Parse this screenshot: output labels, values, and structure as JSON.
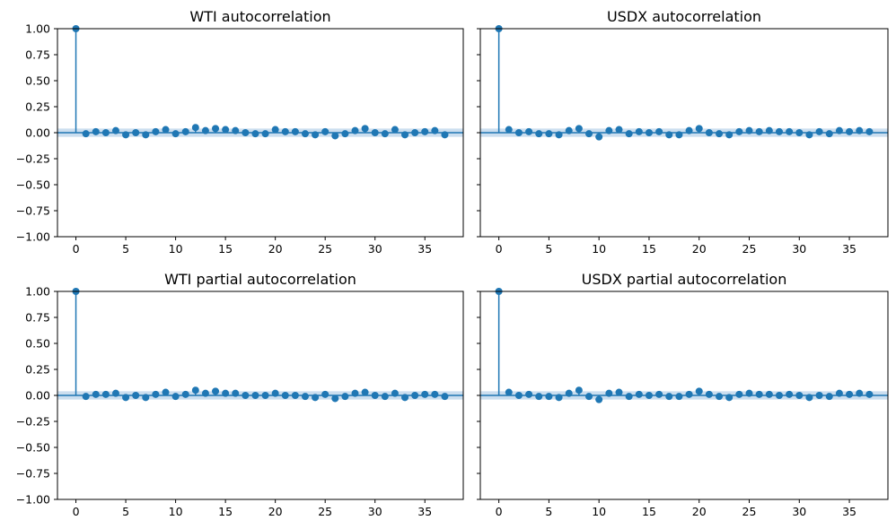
{
  "colors": {
    "series": "#1f77b4",
    "band": "#a9c8e4",
    "axes": "#000000"
  },
  "chart_data": [
    {
      "type": "stem",
      "title": "WTI autocorrelation",
      "x": [
        0,
        1,
        2,
        3,
        4,
        5,
        6,
        7,
        8,
        9,
        10,
        11,
        12,
        13,
        14,
        15,
        16,
        17,
        18,
        19,
        20,
        21,
        22,
        23,
        24,
        25,
        26,
        27,
        28,
        29,
        30,
        31,
        32,
        33,
        34,
        35,
        36,
        37
      ],
      "values": [
        1.0,
        -0.01,
        0.01,
        0.0,
        0.02,
        -0.02,
        0.0,
        -0.02,
        0.01,
        0.03,
        -0.01,
        0.01,
        0.05,
        0.02,
        0.04,
        0.03,
        0.02,
        0.0,
        -0.01,
        -0.01,
        0.03,
        0.01,
        0.01,
        -0.01,
        -0.02,
        0.01,
        -0.03,
        -0.01,
        0.02,
        0.04,
        0.0,
        -0.01,
        0.03,
        -0.02,
        0.0,
        0.01,
        0.02,
        -0.02
      ],
      "xticks": [
        "0",
        "5",
        "10",
        "15",
        "20",
        "25",
        "30",
        "35"
      ],
      "yticks": [
        "1.00",
        "0.75",
        "0.50",
        "0.25",
        "0.00",
        "−0.25",
        "−0.50",
        "−0.75",
        "−1.00"
      ],
      "ylim": [
        -1,
        1
      ],
      "show_yticklabels": true
    },
    {
      "type": "stem",
      "title": "USDX autocorrelation",
      "x": [
        0,
        1,
        2,
        3,
        4,
        5,
        6,
        7,
        8,
        9,
        10,
        11,
        12,
        13,
        14,
        15,
        16,
        17,
        18,
        19,
        20,
        21,
        22,
        23,
        24,
        25,
        26,
        27,
        28,
        29,
        30,
        31,
        32,
        33,
        34,
        35,
        36,
        37
      ],
      "values": [
        1.0,
        0.03,
        0.0,
        0.01,
        -0.01,
        -0.01,
        -0.02,
        0.02,
        0.04,
        -0.01,
        -0.04,
        0.02,
        0.03,
        -0.01,
        0.01,
        0.0,
        0.01,
        -0.02,
        -0.02,
        0.02,
        0.04,
        0.0,
        -0.01,
        -0.02,
        0.01,
        0.02,
        0.01,
        0.02,
        0.01,
        0.01,
        0.0,
        -0.02,
        0.01,
        -0.01,
        0.02,
        0.01,
        0.02,
        0.01
      ],
      "xticks": [
        "0",
        "5",
        "10",
        "15",
        "20",
        "25",
        "30",
        "35"
      ],
      "yticks": [
        "1.00",
        "0.75",
        "0.50",
        "0.25",
        "0.00",
        "−0.25",
        "−0.50",
        "−0.75",
        "−1.00"
      ],
      "ylim": [
        -1,
        1
      ],
      "show_yticklabels": false
    },
    {
      "type": "stem",
      "title": "WTI partial autocorrelation",
      "x": [
        0,
        1,
        2,
        3,
        4,
        5,
        6,
        7,
        8,
        9,
        10,
        11,
        12,
        13,
        14,
        15,
        16,
        17,
        18,
        19,
        20,
        21,
        22,
        23,
        24,
        25,
        26,
        27,
        28,
        29,
        30,
        31,
        32,
        33,
        34,
        35,
        36,
        37
      ],
      "values": [
        1.0,
        -0.01,
        0.01,
        0.01,
        0.02,
        -0.02,
        0.0,
        -0.02,
        0.01,
        0.03,
        -0.01,
        0.01,
        0.05,
        0.02,
        0.04,
        0.02,
        0.02,
        0.0,
        0.0,
        0.0,
        0.02,
        0.0,
        0.0,
        -0.01,
        -0.02,
        0.01,
        -0.03,
        -0.01,
        0.02,
        0.03,
        0.0,
        -0.01,
        0.02,
        -0.02,
        0.0,
        0.01,
        0.01,
        -0.01
      ],
      "xticks": [
        "0",
        "5",
        "10",
        "15",
        "20",
        "25",
        "30",
        "35"
      ],
      "yticks": [
        "1.00",
        "0.75",
        "0.50",
        "0.25",
        "0.00",
        "−0.25",
        "−0.50",
        "−0.75",
        "−1.00"
      ],
      "ylim": [
        -1,
        1
      ],
      "show_yticklabels": true
    },
    {
      "type": "stem",
      "title": "USDX partial autocorrelation",
      "x": [
        0,
        1,
        2,
        3,
        4,
        5,
        6,
        7,
        8,
        9,
        10,
        11,
        12,
        13,
        14,
        15,
        16,
        17,
        18,
        19,
        20,
        21,
        22,
        23,
        24,
        25,
        26,
        27,
        28,
        29,
        30,
        31,
        32,
        33,
        34,
        35,
        36,
        37
      ],
      "values": [
        1.0,
        0.03,
        0.0,
        0.01,
        -0.01,
        -0.01,
        -0.02,
        0.02,
        0.05,
        -0.01,
        -0.04,
        0.02,
        0.03,
        -0.01,
        0.01,
        0.0,
        0.01,
        -0.01,
        -0.01,
        0.01,
        0.04,
        0.01,
        -0.01,
        -0.02,
        0.01,
        0.02,
        0.01,
        0.01,
        0.0,
        0.01,
        0.0,
        -0.02,
        0.0,
        -0.01,
        0.02,
        0.01,
        0.02,
        0.01
      ],
      "xticks": [
        "0",
        "5",
        "10",
        "15",
        "20",
        "25",
        "30",
        "35"
      ],
      "yticks": [
        "1.00",
        "0.75",
        "0.50",
        "0.25",
        "0.00",
        "−0.25",
        "−0.50",
        "−0.75",
        "−1.00"
      ],
      "ylim": [
        -1,
        1
      ],
      "show_yticklabels": false
    }
  ]
}
